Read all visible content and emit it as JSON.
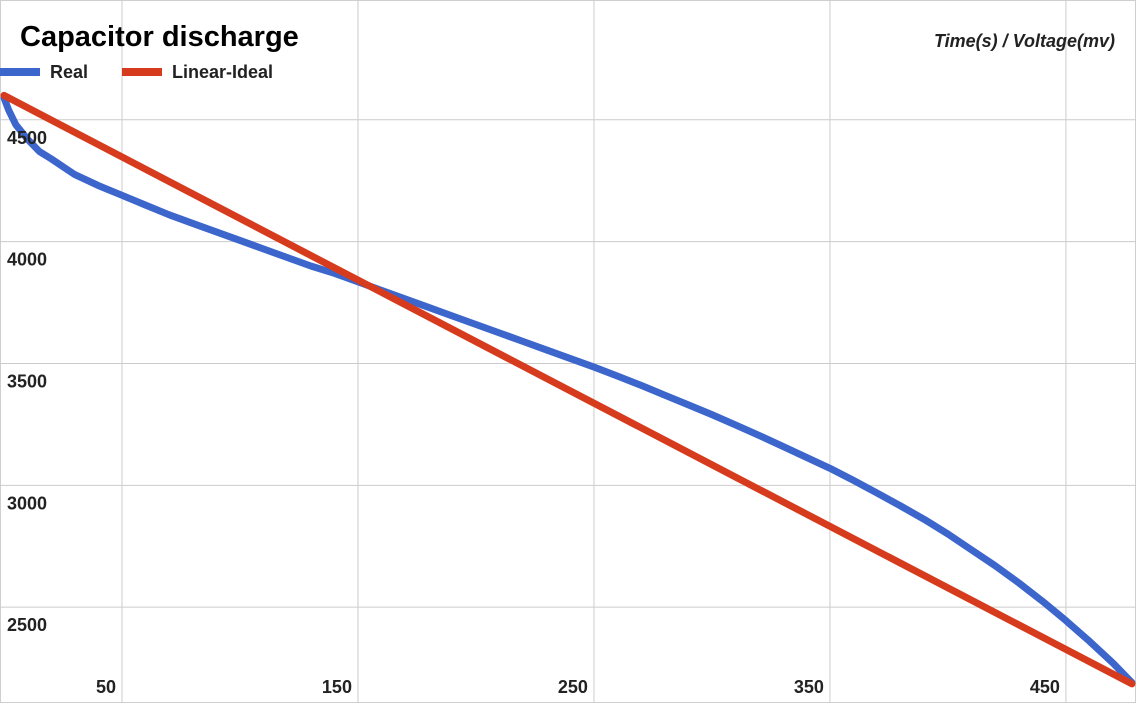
{
  "chart_data": {
    "type": "line",
    "title": "Capacitor discharge",
    "axis_caption": "Time(s) / Voltage(mv)",
    "xlim": [
      0,
      478
    ],
    "ylim": [
      2160,
      4610
    ],
    "x_ticks": [
      50,
      150,
      250,
      350,
      450
    ],
    "y_ticks": [
      2500,
      3000,
      3500,
      4000,
      4500
    ],
    "grid": true,
    "legend_position": "top-left",
    "series": [
      {
        "name": "Real",
        "color": "#3c66cc",
        "x": [
          0,
          2,
          5,
          10,
          15,
          20,
          30,
          40,
          50,
          60,
          70,
          80,
          90,
          100,
          110,
          120,
          130,
          140,
          150,
          160,
          170,
          180,
          190,
          200,
          210,
          220,
          230,
          240,
          250,
          260,
          270,
          280,
          290,
          300,
          310,
          320,
          330,
          340,
          350,
          360,
          370,
          380,
          390,
          400,
          410,
          420,
          430,
          440,
          450,
          460,
          470,
          478
        ],
        "y": [
          4590,
          4540,
          4480,
          4420,
          4370,
          4340,
          4275,
          4230,
          4190,
          4150,
          4110,
          4075,
          4040,
          4005,
          3970,
          3935,
          3900,
          3870,
          3835,
          3800,
          3765,
          3730,
          3695,
          3660,
          3625,
          3590,
          3555,
          3520,
          3485,
          3448,
          3410,
          3370,
          3330,
          3290,
          3248,
          3205,
          3160,
          3115,
          3070,
          3020,
          2968,
          2915,
          2860,
          2800,
          2735,
          2670,
          2600,
          2525,
          2445,
          2360,
          2270,
          2190
        ]
      },
      {
        "name": "Linear-Ideal",
        "color": "#d63b1e",
        "x": [
          0,
          478
        ],
        "y": [
          4600,
          2185
        ]
      }
    ]
  }
}
